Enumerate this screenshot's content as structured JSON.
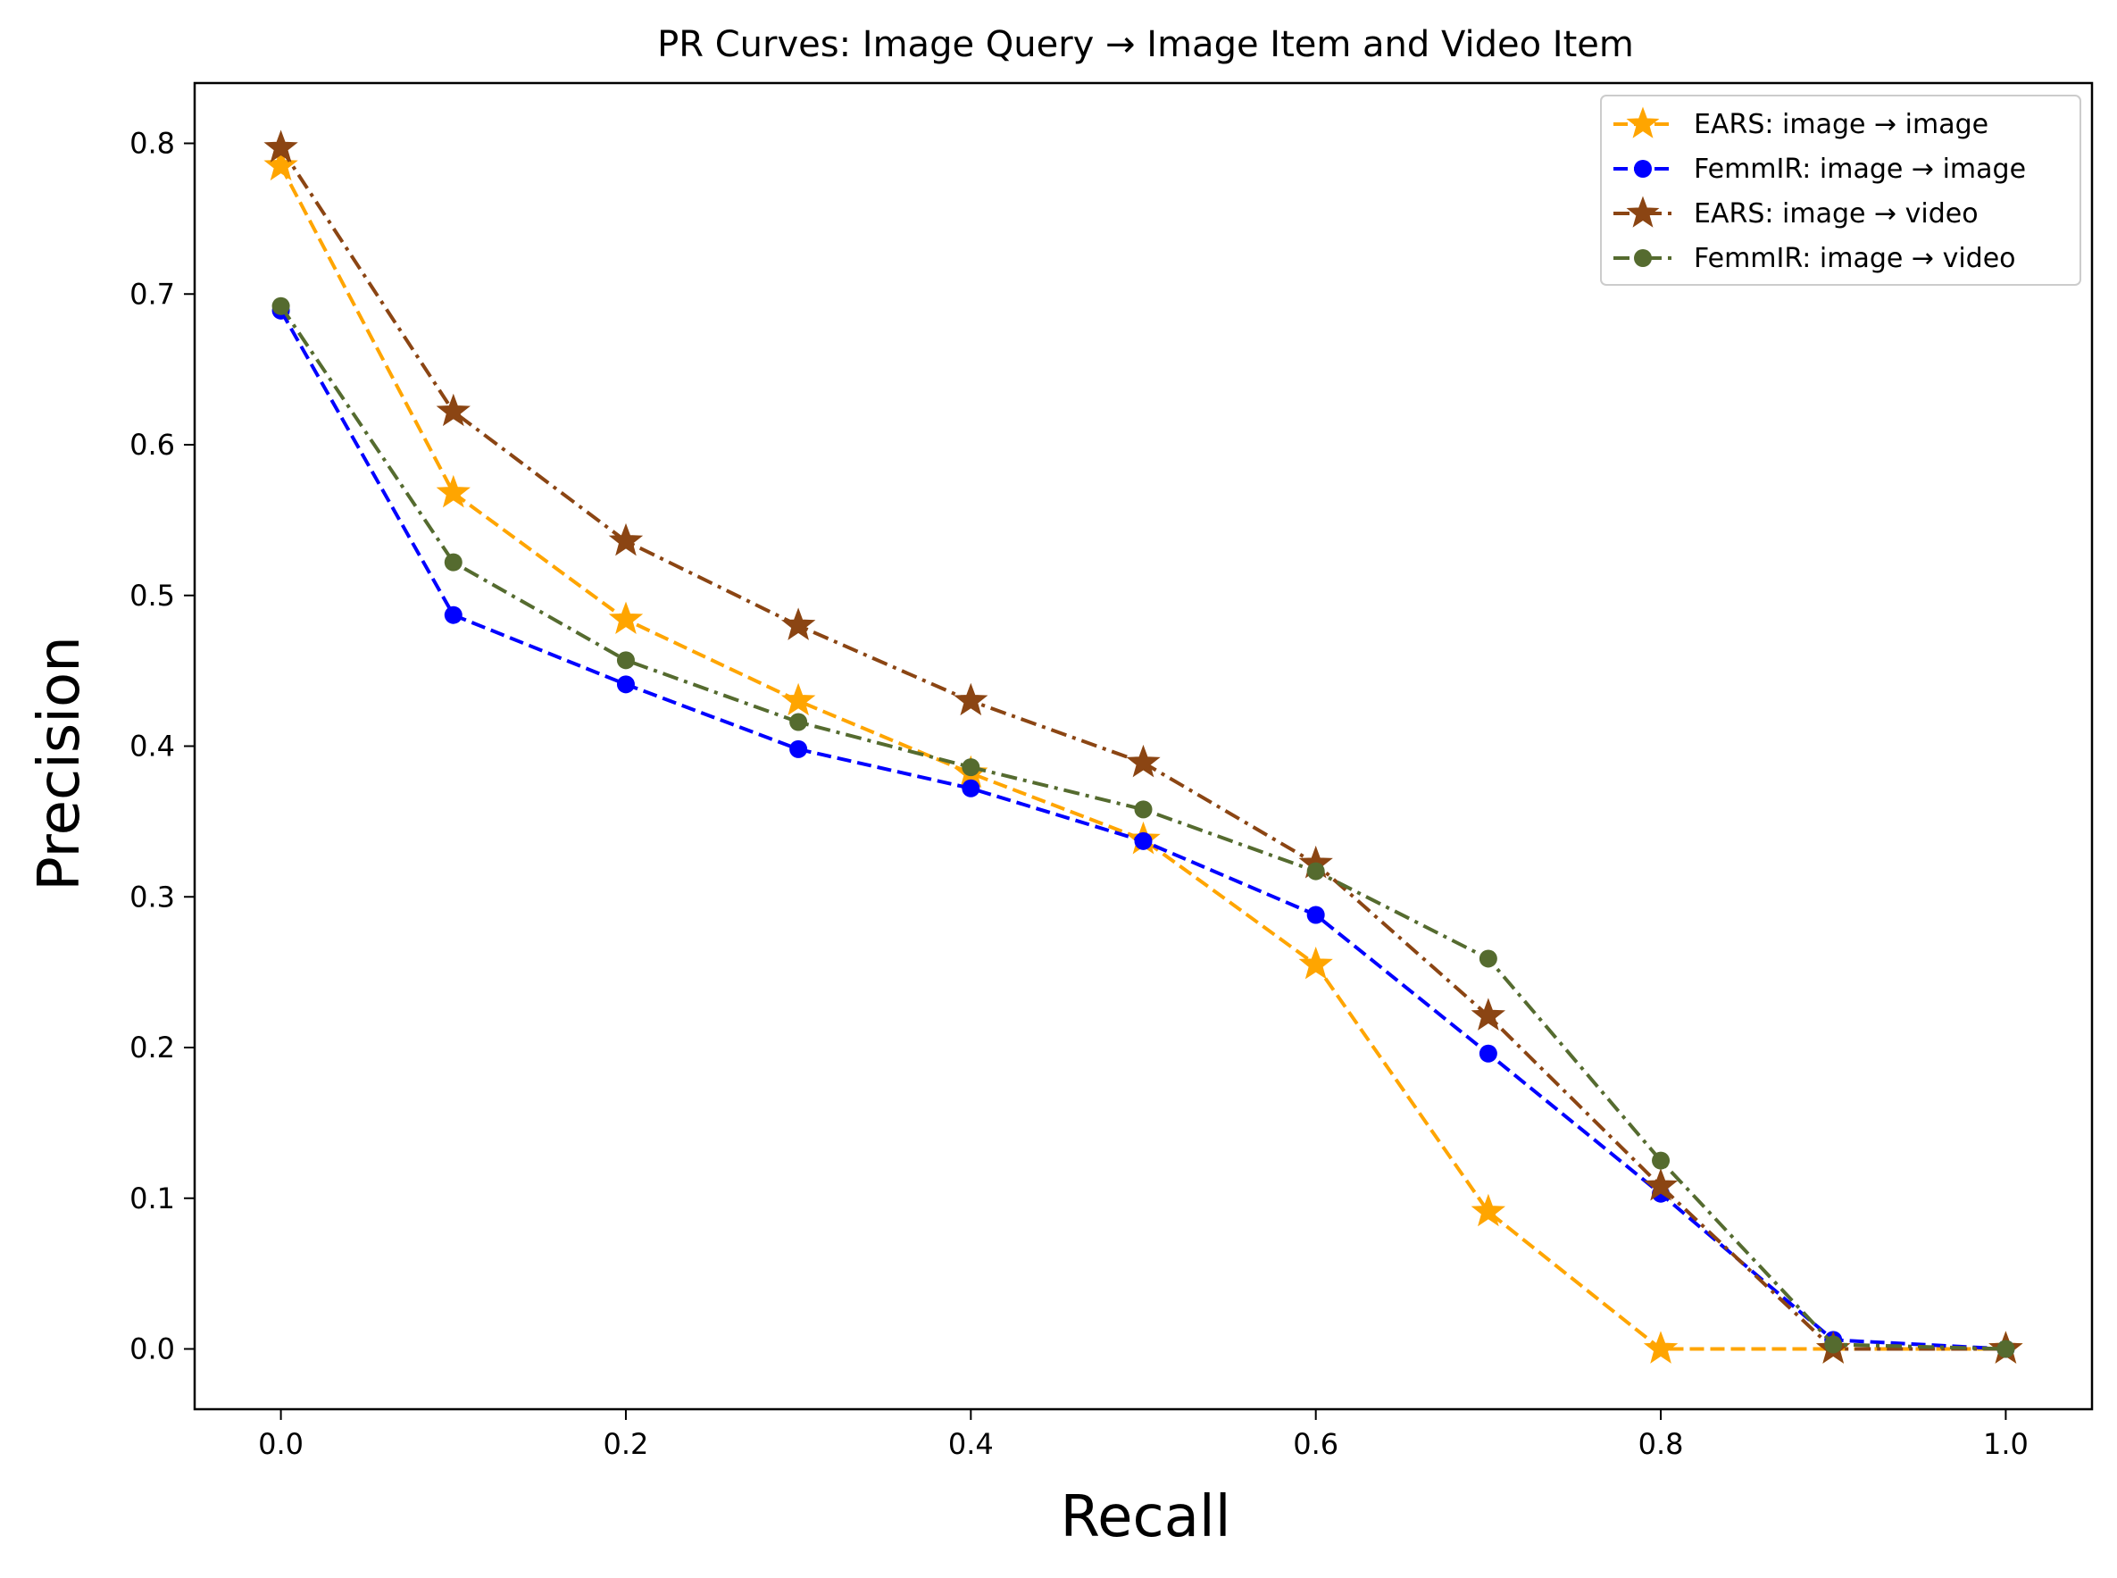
{
  "chart_data": {
    "type": "line",
    "title": "PR Curves: Image Query → Image Item and Video Item",
    "xlabel": "Recall",
    "ylabel": "Precision",
    "xlim": [
      -0.05,
      1.05
    ],
    "ylim": [
      -0.04,
      0.84
    ],
    "xticks": [
      "0.0",
      "0.2",
      "0.4",
      "0.6",
      "0.8",
      "1.0"
    ],
    "yticks": [
      "0.0",
      "0.1",
      "0.2",
      "0.3",
      "0.4",
      "0.5",
      "0.6",
      "0.7",
      "0.8"
    ],
    "grid": false,
    "legend_position": "top-right",
    "x": [
      0.0,
      0.1,
      0.2,
      0.3,
      0.4,
      0.5,
      0.6,
      0.7,
      0.8,
      0.9,
      1.0
    ],
    "series": [
      {
        "name": "EARS: image → image",
        "color": "#FFA500",
        "marker": "star",
        "linestyle": "dashed",
        "values": [
          0.785,
          0.568,
          0.484,
          0.43,
          0.382,
          0.338,
          0.255,
          0.091,
          0.0,
          0.0,
          0.0
        ]
      },
      {
        "name": "FemmIR: image → image",
        "color": "#0000FF",
        "marker": "circle",
        "linestyle": "dashed",
        "values": [
          0.689,
          0.487,
          0.441,
          0.398,
          0.372,
          0.337,
          0.288,
          0.196,
          0.103,
          0.006,
          0.0
        ]
      },
      {
        "name": "EARS: image → video",
        "color": "#8B4513",
        "marker": "star",
        "linestyle": "dashdot",
        "values": [
          0.797,
          0.622,
          0.536,
          0.48,
          0.43,
          0.389,
          0.322,
          0.221,
          0.108,
          0.0,
          0.0
        ]
      },
      {
        "name": "FemmIR: image → video",
        "color": "#556B2F",
        "marker": "circle",
        "linestyle": "dashdot",
        "values": [
          0.692,
          0.522,
          0.457,
          0.416,
          0.386,
          0.358,
          0.317,
          0.259,
          0.125,
          0.003,
          0.0
        ]
      }
    ]
  }
}
